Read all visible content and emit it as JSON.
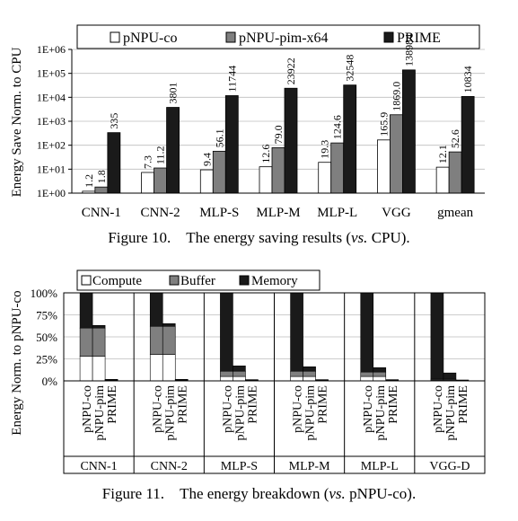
{
  "figures": [
    {
      "caption_prefix": "Figure 10.",
      "caption_text_before": "The energy saving results (",
      "caption_italic": "vs.",
      "caption_text_after": " CPU)."
    },
    {
      "caption_prefix": "Figure 11.",
      "caption_text_before": "The energy breakdown (",
      "caption_italic": "vs.",
      "caption_text_after": " pNPU-co)."
    }
  ],
  "chart_data": [
    {
      "type": "bar",
      "ylabel": "Energy Save Norm. to CPU",
      "yscale": "log",
      "ylim": [
        1,
        1000000
      ],
      "yticks": [
        "1E+00",
        "1E+01",
        "1E+02",
        "1E+03",
        "1E+04",
        "1E+05",
        "1E+06"
      ],
      "legend_position": "top",
      "categories": [
        "CNN-1",
        "CNN-2",
        "MLP-S",
        "MLP-M",
        "MLP-L",
        "VGG",
        "gmean"
      ],
      "series": [
        {
          "name": "pNPU-co",
          "color": "#ffffff",
          "values": [
            1.2,
            7.3,
            9.4,
            12.6,
            19.3,
            165.9,
            12.1
          ],
          "labels": [
            "1.2",
            "7.3",
            "9.4",
            "12.6",
            "19.3",
            "165.9",
            "12.1"
          ]
        },
        {
          "name": "pNPU-pim-x64",
          "color": "#7f7f7f",
          "values": [
            1.8,
            11.2,
            56.1,
            79.0,
            124.6,
            1869.0,
            52.6
          ],
          "labels": [
            "1.8",
            "11.2",
            "56.1",
            "79.0",
            "124.6",
            "1869.0",
            "52.6"
          ]
        },
        {
          "name": "PRIME",
          "color": "#1a1a1a",
          "values": [
            335,
            3801,
            11744,
            23922,
            32548,
            138984,
            10834
          ],
          "labels": [
            "335",
            "3801",
            "11744",
            "23922",
            "32548",
            "138984",
            "10834"
          ]
        }
      ]
    },
    {
      "type": "bar",
      "stacked": true,
      "ylabel": "Energy Norm. to pNPU-co",
      "ylim": [
        0,
        100
      ],
      "yticks": [
        "0%",
        "25%",
        "50%",
        "75%",
        "100%"
      ],
      "legend_position": "top",
      "groups": [
        "CNN-1",
        "CNN-2",
        "MLP-S",
        "MLP-M",
        "MLP-L",
        "VGG-D"
      ],
      "bar_labels": [
        "pNPU-co",
        "pNPU-pim",
        "PRIME"
      ],
      "components": [
        {
          "name": "Compute",
          "color": "#ffffff"
        },
        {
          "name": "Buffer",
          "color": "#7f7f7f"
        },
        {
          "name": "Memory",
          "color": "#1a1a1a"
        }
      ],
      "values": [
        [
          [
            28,
            32,
            40
          ],
          [
            28,
            32,
            3
          ],
          [
            0.5,
            0.5,
            0.7
          ]
        ],
        [
          [
            30,
            32,
            38
          ],
          [
            30,
            32,
            3
          ],
          [
            0.5,
            0.5,
            0.7
          ]
        ],
        [
          [
            5,
            6,
            89
          ],
          [
            5,
            6,
            6
          ],
          [
            0.3,
            0.3,
            0.8
          ]
        ],
        [
          [
            5,
            6,
            89
          ],
          [
            5,
            6,
            5
          ],
          [
            0.3,
            0.3,
            0.8
          ]
        ],
        [
          [
            5,
            5,
            90
          ],
          [
            5,
            5,
            5
          ],
          [
            0.3,
            0.3,
            0.8
          ]
        ],
        [
          [
            1,
            1,
            98
          ],
          [
            1,
            1,
            7
          ],
          [
            0.2,
            0.2,
            0.6
          ]
        ]
      ]
    }
  ]
}
